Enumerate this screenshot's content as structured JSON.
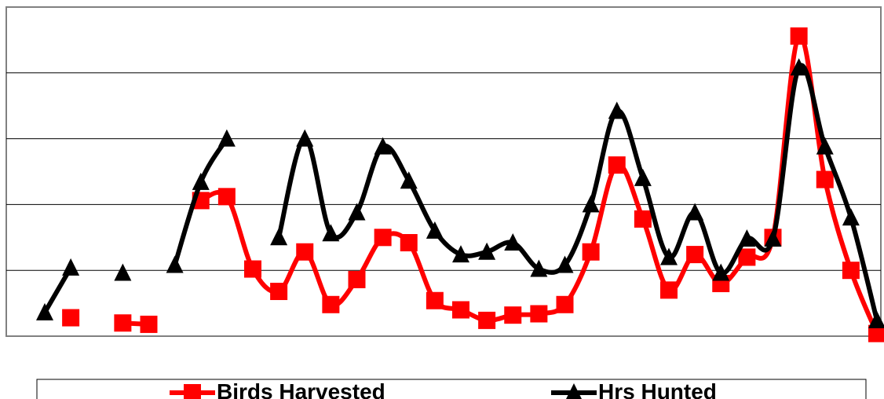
{
  "chart_data": {
    "type": "line",
    "title": "",
    "xlabel": "",
    "ylabel": "",
    "ylim": [
      0,
      100
    ],
    "grid": true,
    "legend_position": "bottom",
    "x": [
      1,
      2,
      3,
      4,
      5,
      6,
      7,
      8,
      9,
      10,
      11,
      12,
      13,
      14,
      15,
      16,
      17,
      18,
      19,
      20,
      21,
      22,
      23,
      24,
      25,
      26,
      27,
      28,
      29,
      30,
      31,
      32,
      33
    ],
    "series": [
      {
        "name": "Birds Harvested",
        "color": "#ff0000",
        "marker": "square",
        "values": [
          null,
          5.6,
          null,
          4.0,
          3.6,
          null,
          41.2,
          42.4,
          20.4,
          13.6,
          25.6,
          9.6,
          17.2,
          30.0,
          28.4,
          10.8,
          8.0,
          4.8,
          6.4,
          6.8,
          9.6,
          25.6,
          52.0,
          35.6,
          14.0,
          24.8,
          16.0,
          24.0,
          30.0,
          91.2,
          47.6,
          20.0,
          0.8
        ]
      },
      {
        "name": "Hrs Hunted",
        "color": "#000000",
        "marker": "triangle",
        "values": [
          7.2,
          20.8,
          null,
          19.2,
          null,
          21.6,
          46.8,
          60.0,
          null,
          30.0,
          60.0,
          31.2,
          37.6,
          57.6,
          47.2,
          32.0,
          24.8,
          25.6,
          28.4,
          20.4,
          21.6,
          40.0,
          68.4,
          48.0,
          24.0,
          37.6,
          19.2,
          29.6,
          29.6,
          81.6,
          57.6,
          36.0,
          4.8
        ]
      }
    ]
  }
}
